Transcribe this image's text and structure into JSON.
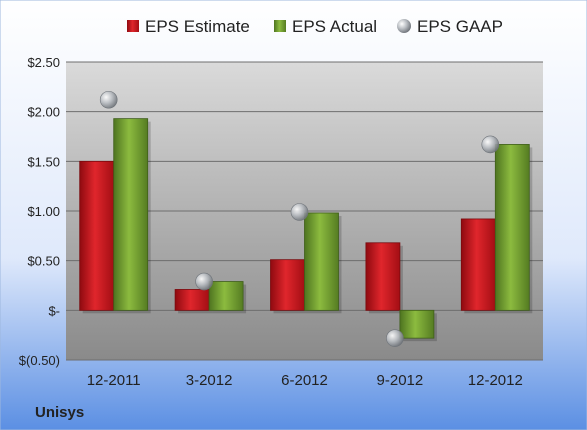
{
  "company": "Unisys",
  "colors": {
    "estimate": "#c8141c",
    "actual": "#6f9a2b",
    "gaap": "#9aa0a6",
    "background_top": "#ffffff",
    "background_bottom": "#5b8fe3",
    "plot_top": "#d9d9d9",
    "plot_bottom": "#8c8c8c"
  },
  "chart_data": {
    "type": "bar",
    "categories": [
      "12-2011",
      "3-2012",
      "6-2012",
      "9-2012",
      "12-2012"
    ],
    "series": [
      {
        "name": "EPS Estimate",
        "values": [
          1.5,
          0.21,
          0.51,
          0.68,
          0.92
        ]
      },
      {
        "name": "EPS Actual",
        "values": [
          1.93,
          0.29,
          0.98,
          -0.28,
          1.67
        ]
      },
      {
        "name": "EPS GAAP",
        "values": [
          2.12,
          0.29,
          0.99,
          -0.28,
          1.67
        ],
        "marker": "scatter"
      }
    ],
    "y_ticks": [
      2.5,
      2.0,
      1.5,
      1.0,
      0.5,
      0,
      -0.5
    ],
    "y_tick_labels": [
      "$2.50",
      "$2.00",
      "$1.50",
      "$1.00",
      "$0.50",
      "$-",
      "$(0.50)"
    ],
    "ylim": [
      -0.5,
      2.5
    ],
    "grid": true,
    "legend_position": "top"
  }
}
